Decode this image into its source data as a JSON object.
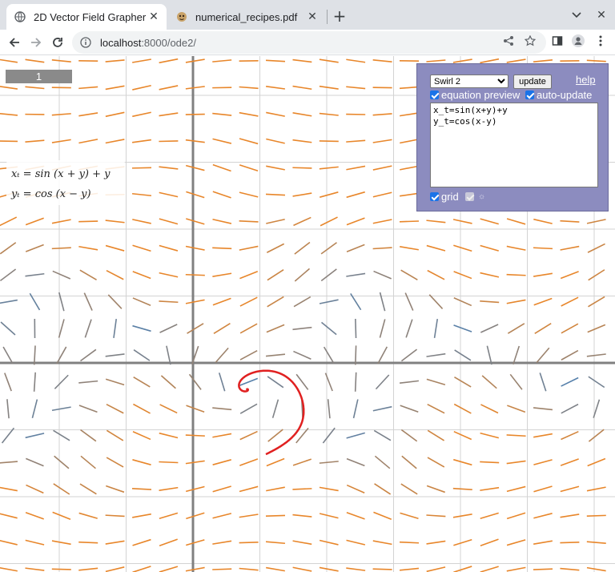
{
  "browser": {
    "tabs": [
      {
        "title": "2D Vector Field Grapher |",
        "active": true,
        "icon": "globe-icon"
      },
      {
        "title": "numerical_recipes.pdf",
        "active": false,
        "icon": "pdf-icon"
      }
    ],
    "url_host": "localhost",
    "url_rest": ":8000/ode2/"
  },
  "app": {
    "counter": "1",
    "equation_preview": {
      "line1": "xₜ = sin (x + y) + y",
      "line2": "yₜ = cos (x − y)"
    },
    "panel": {
      "preset_selected": "Swirl 2",
      "update_label": "update",
      "help_label": "help",
      "equation_preview_label": "equation preview",
      "equation_preview_checked": true,
      "auto_update_label": "auto-update",
      "auto_update_checked": true,
      "equations_text": "x_t=sin(x+y)+y\ny_t=cos(x-y)",
      "grid_label": "grid",
      "grid_checked": true,
      "extra_label": "☼",
      "extra_checked": true
    },
    "colors": {
      "fast": "#e8862a",
      "slow": "#3f7fbf",
      "trajectory": "#e02020",
      "axis": "#808080",
      "grid": "#d3d3d3",
      "panel_bg": "#8c8cbf"
    }
  }
}
